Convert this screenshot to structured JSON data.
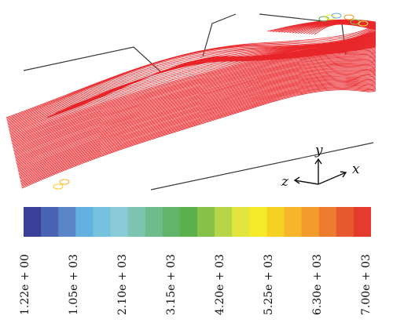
{
  "figure": {
    "legend": {
      "colors": [
        "#3a3f9a",
        "#4a63b3",
        "#5a86c9",
        "#63b1e0",
        "#76c1dd",
        "#89ccd8",
        "#7cc4b0",
        "#6fbb8c",
        "#62b46a",
        "#5ab04b",
        "#86c24a",
        "#b6d548",
        "#e4e53c",
        "#f4ea2a",
        "#f7d024",
        "#f6b52a",
        "#f39b2c",
        "#ee7c2e",
        "#e75a30",
        "#e53a2e"
      ],
      "tick_labels": [
        "1.22e + 00",
        "1.05e + 03",
        "2.10e + 03",
        "3.15e + 03",
        "4.20e + 03",
        "5.25e + 03",
        "6.30e + 03",
        "7.00e + 03"
      ]
    },
    "axes": {
      "y": "y",
      "z": "z",
      "x": "x"
    },
    "streamline_color": "#e8262a",
    "structure_color": "#3a3a3a"
  }
}
